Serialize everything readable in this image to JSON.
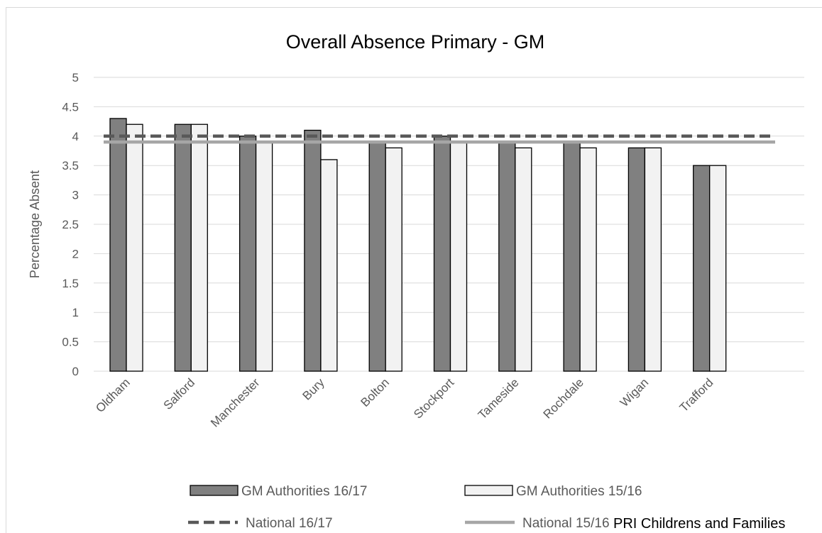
{
  "chart_data": {
    "type": "bar",
    "title": "Overall Absence Primary - GM",
    "xlabel": "",
    "ylabel": "Percentage Absent",
    "ylim": [
      0,
      5
    ],
    "yticks": [
      "0",
      "0.5",
      "1",
      "1.5",
      "2",
      "2.5",
      "3",
      "3.5",
      "4",
      "4.5",
      "5"
    ],
    "grid": true,
    "legend_position": "bottom",
    "categories": [
      "Oldham",
      "Salford",
      "Manchester",
      "Bury",
      "Bolton",
      "Stockport",
      "Tameside",
      "Rochdale",
      "Wigan",
      "Trafford"
    ],
    "series": [
      {
        "name": "GM Authorities 16/17",
        "values": [
          4.3,
          4.2,
          4.0,
          4.1,
          3.9,
          4.0,
          3.9,
          3.9,
          3.8,
          3.5
        ],
        "color": "#808080"
      },
      {
        "name": "GM Authorities 15/16",
        "values": [
          4.2,
          4.2,
          3.9,
          3.6,
          3.8,
          3.9,
          3.8,
          3.8,
          3.8,
          3.5
        ],
        "color": "#f2f2f2"
      }
    ],
    "reference_lines": [
      {
        "name": "National 16/17",
        "value": 4.0,
        "style": "dashed",
        "color": "#595959"
      },
      {
        "name": "National 15/16",
        "value": 3.9,
        "style": "solid",
        "color": "#a6a6a6"
      }
    ],
    "annotation": "PRI Childrens and Families"
  }
}
